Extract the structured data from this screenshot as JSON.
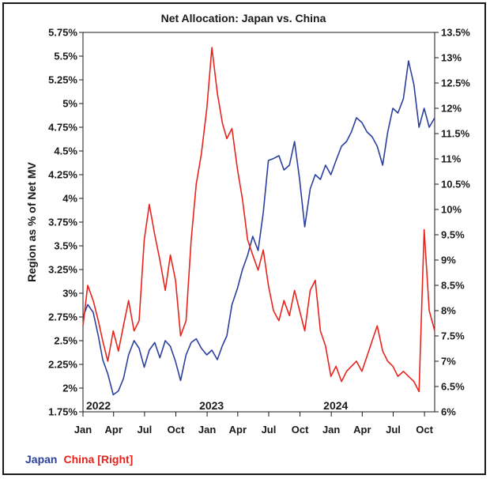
{
  "chart_data": {
    "type": "line",
    "title": "Net Allocation: Japan vs. China",
    "ylabel": "Region as % of Net MV",
    "xlabel": "",
    "x_range": [
      "2022-01-01",
      "2024-10-31"
    ],
    "x_tick_labels": [
      "Jan",
      "Apr",
      "Jul",
      "Oct",
      "Jan",
      "Apr",
      "Jul",
      "Oct",
      "Jan",
      "Apr",
      "Jul",
      "Oct"
    ],
    "x_tick_dates": [
      "2022-01-01",
      "2022-04-01",
      "2022-07-01",
      "2022-10-01",
      "2023-01-01",
      "2023-04-01",
      "2023-07-01",
      "2023-10-01",
      "2024-01-01",
      "2024-04-01",
      "2024-07-01",
      "2024-10-01"
    ],
    "year_labels": [
      {
        "label": "2022",
        "date": "2022-01-01"
      },
      {
        "label": "2023",
        "date": "2023-01-01"
      },
      {
        "label": "2024",
        "date": "2024-01-01"
      }
    ],
    "y_left_range": [
      1.75,
      5.75
    ],
    "y_left_ticks": [
      "1.75%",
      "2%",
      "2.25%",
      "2.5%",
      "2.75%",
      "3%",
      "3.25%",
      "3.5%",
      "3.75%",
      "4%",
      "4.25%",
      "4.5%",
      "4.75%",
      "5%",
      "5.25%",
      "5.5%",
      "5.75%"
    ],
    "y_right_range": [
      6,
      13.5
    ],
    "y_right_ticks": [
      "6%",
      "6.5%",
      "7%",
      "7.5%",
      "8%",
      "8.5%",
      "9%",
      "9.5%",
      "10%",
      "10.5%",
      "11%",
      "11.5%",
      "12%",
      "12.5%",
      "13%",
      "13.5%"
    ],
    "grid": false,
    "legend_position": "bottom-left",
    "series": [
      {
        "name": "Japan",
        "color": "#2b3f9e",
        "axis": "left",
        "points": [
          [
            "2022-01-01",
            2.75
          ],
          [
            "2022-01-15",
            2.88
          ],
          [
            "2022-01-31",
            2.8
          ],
          [
            "2022-02-15",
            2.55
          ],
          [
            "2022-02-28",
            2.3
          ],
          [
            "2022-03-15",
            2.15
          ],
          [
            "2022-03-31",
            1.93
          ],
          [
            "2022-04-15",
            1.97
          ],
          [
            "2022-04-30",
            2.1
          ],
          [
            "2022-05-15",
            2.35
          ],
          [
            "2022-05-31",
            2.5
          ],
          [
            "2022-06-15",
            2.42
          ],
          [
            "2022-06-30",
            2.22
          ],
          [
            "2022-07-15",
            2.4
          ],
          [
            "2022-07-31",
            2.48
          ],
          [
            "2022-08-15",
            2.32
          ],
          [
            "2022-08-31",
            2.5
          ],
          [
            "2022-09-15",
            2.44
          ],
          [
            "2022-09-30",
            2.28
          ],
          [
            "2022-10-15",
            2.08
          ],
          [
            "2022-10-31",
            2.35
          ],
          [
            "2022-11-15",
            2.48
          ],
          [
            "2022-11-30",
            2.52
          ],
          [
            "2022-12-15",
            2.42
          ],
          [
            "2022-12-31",
            2.35
          ],
          [
            "2023-01-15",
            2.4
          ],
          [
            "2023-01-31",
            2.3
          ],
          [
            "2023-02-15",
            2.45
          ],
          [
            "2023-02-28",
            2.55
          ],
          [
            "2023-03-15",
            2.88
          ],
          [
            "2023-03-31",
            3.05
          ],
          [
            "2023-04-15",
            3.25
          ],
          [
            "2023-04-30",
            3.4
          ],
          [
            "2023-05-15",
            3.6
          ],
          [
            "2023-05-31",
            3.45
          ],
          [
            "2023-06-15",
            3.85
          ],
          [
            "2023-06-30",
            4.4
          ],
          [
            "2023-07-15",
            4.42
          ],
          [
            "2023-07-31",
            4.45
          ],
          [
            "2023-08-15",
            4.3
          ],
          [
            "2023-08-31",
            4.35
          ],
          [
            "2023-09-15",
            4.6
          ],
          [
            "2023-09-30",
            4.2
          ],
          [
            "2023-10-15",
            3.7
          ],
          [
            "2023-10-31",
            4.1
          ],
          [
            "2023-11-15",
            4.25
          ],
          [
            "2023-11-30",
            4.2
          ],
          [
            "2023-12-15",
            4.35
          ],
          [
            "2023-12-31",
            4.25
          ],
          [
            "2024-01-15",
            4.4
          ],
          [
            "2024-01-31",
            4.55
          ],
          [
            "2024-02-15",
            4.6
          ],
          [
            "2024-02-29",
            4.7
          ],
          [
            "2024-03-15",
            4.85
          ],
          [
            "2024-03-31",
            4.8
          ],
          [
            "2024-04-15",
            4.7
          ],
          [
            "2024-04-30",
            4.65
          ],
          [
            "2024-05-15",
            4.55
          ],
          [
            "2024-05-31",
            4.35
          ],
          [
            "2024-06-15",
            4.7
          ],
          [
            "2024-06-30",
            4.95
          ],
          [
            "2024-07-15",
            4.9
          ],
          [
            "2024-07-31",
            5.05
          ],
          [
            "2024-08-15",
            5.45
          ],
          [
            "2024-08-31",
            5.2
          ],
          [
            "2024-09-15",
            4.75
          ],
          [
            "2024-09-30",
            4.95
          ],
          [
            "2024-10-15",
            4.75
          ],
          [
            "2024-10-31",
            4.85
          ]
        ]
      },
      {
        "name": "China [Right]",
        "color": "#e8231c",
        "axis": "right",
        "points": [
          [
            "2022-01-01",
            7.7
          ],
          [
            "2022-01-15",
            8.5
          ],
          [
            "2022-01-31",
            8.2
          ],
          [
            "2022-02-15",
            7.8
          ],
          [
            "2022-02-28",
            7.4
          ],
          [
            "2022-03-15",
            7.0
          ],
          [
            "2022-03-31",
            7.6
          ],
          [
            "2022-04-15",
            7.2
          ],
          [
            "2022-04-30",
            7.7
          ],
          [
            "2022-05-15",
            8.2
          ],
          [
            "2022-05-31",
            7.6
          ],
          [
            "2022-06-15",
            7.8
          ],
          [
            "2022-06-30",
            9.4
          ],
          [
            "2022-07-15",
            10.1
          ],
          [
            "2022-07-31",
            9.5
          ],
          [
            "2022-08-15",
            9.0
          ],
          [
            "2022-08-31",
            8.4
          ],
          [
            "2022-09-15",
            9.1
          ],
          [
            "2022-09-30",
            8.6
          ],
          [
            "2022-10-15",
            7.5
          ],
          [
            "2022-10-31",
            7.8
          ],
          [
            "2022-11-15",
            9.4
          ],
          [
            "2022-11-30",
            10.5
          ],
          [
            "2022-12-15",
            11.1
          ],
          [
            "2022-12-31",
            12.0
          ],
          [
            "2023-01-15",
            13.2
          ],
          [
            "2023-01-31",
            12.3
          ],
          [
            "2023-02-15",
            11.7
          ],
          [
            "2023-02-28",
            11.4
          ],
          [
            "2023-03-15",
            11.6
          ],
          [
            "2023-03-31",
            10.8
          ],
          [
            "2023-04-15",
            10.2
          ],
          [
            "2023-04-30",
            9.4
          ],
          [
            "2023-05-15",
            9.1
          ],
          [
            "2023-05-31",
            8.8
          ],
          [
            "2023-06-15",
            9.2
          ],
          [
            "2023-06-30",
            8.5
          ],
          [
            "2023-07-15",
            8.0
          ],
          [
            "2023-07-31",
            7.8
          ],
          [
            "2023-08-15",
            8.2
          ],
          [
            "2023-08-31",
            7.9
          ],
          [
            "2023-09-15",
            8.4
          ],
          [
            "2023-09-30",
            8.0
          ],
          [
            "2023-10-15",
            7.6
          ],
          [
            "2023-10-31",
            8.4
          ],
          [
            "2023-11-15",
            8.6
          ],
          [
            "2023-11-30",
            7.6
          ],
          [
            "2023-12-15",
            7.3
          ],
          [
            "2023-12-31",
            6.7
          ],
          [
            "2024-01-15",
            6.9
          ],
          [
            "2024-01-31",
            6.6
          ],
          [
            "2024-02-15",
            6.8
          ],
          [
            "2024-02-29",
            6.9
          ],
          [
            "2024-03-15",
            7.0
          ],
          [
            "2024-03-31",
            6.8
          ],
          [
            "2024-04-15",
            7.1
          ],
          [
            "2024-04-30",
            7.4
          ],
          [
            "2024-05-15",
            7.7
          ],
          [
            "2024-05-31",
            7.2
          ],
          [
            "2024-06-15",
            7.0
          ],
          [
            "2024-06-30",
            6.9
          ],
          [
            "2024-07-15",
            6.7
          ],
          [
            "2024-07-31",
            6.8
          ],
          [
            "2024-08-15",
            6.7
          ],
          [
            "2024-08-31",
            6.6
          ],
          [
            "2024-09-15",
            6.4
          ],
          [
            "2024-09-30",
            9.6
          ],
          [
            "2024-10-15",
            8.0
          ],
          [
            "2024-10-31",
            7.6
          ]
        ]
      }
    ]
  }
}
